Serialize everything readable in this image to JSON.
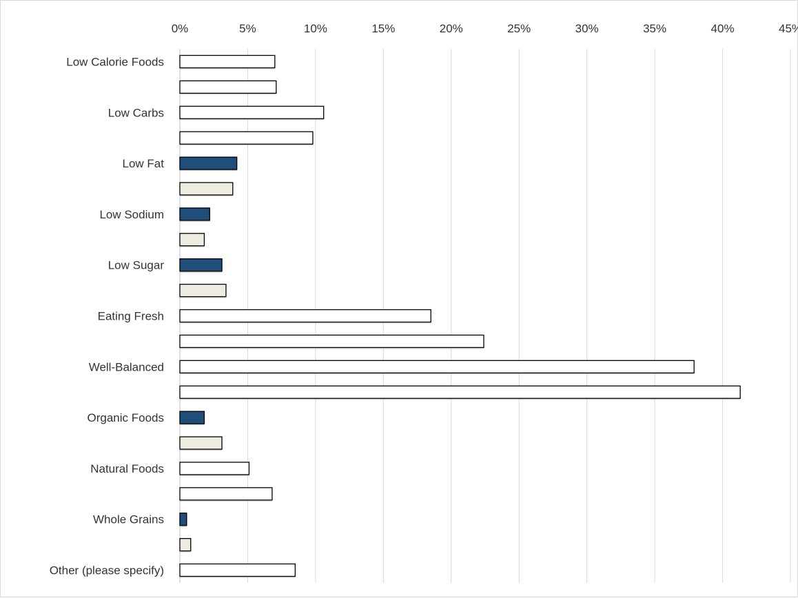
{
  "chart_data": {
    "type": "bar",
    "orientation": "horizontal",
    "title": "",
    "xlabel": "",
    "ylabel": "",
    "xlim": [
      0,
      45
    ],
    "x_tick_labels": [
      "0%",
      "5%",
      "10%",
      "15%",
      "20%",
      "25%",
      "30%",
      "35%",
      "40%",
      "45%"
    ],
    "grid": "vertical",
    "legend": "none",
    "axis_position": "top",
    "bars": [
      {
        "category": "Low Calorie Foods",
        "value": 7.0,
        "style": "white"
      },
      {
        "category": "",
        "value": 7.1,
        "style": "white"
      },
      {
        "category": "Low Carbs",
        "value": 10.6,
        "style": "white"
      },
      {
        "category": "",
        "value": 9.8,
        "style": "white"
      },
      {
        "category": "Low Fat",
        "value": 4.2,
        "style": "blue"
      },
      {
        "category": "",
        "value": 3.9,
        "style": "beige"
      },
      {
        "category": "Low Sodium",
        "value": 2.2,
        "style": "blue"
      },
      {
        "category": "",
        "value": 1.8,
        "style": "beige"
      },
      {
        "category": "Low Sugar",
        "value": 3.1,
        "style": "blue"
      },
      {
        "category": "",
        "value": 3.4,
        "style": "beige"
      },
      {
        "category": "Eating Fresh",
        "value": 18.5,
        "style": "white"
      },
      {
        "category": "",
        "value": 22.4,
        "style": "white"
      },
      {
        "category": "Well-Balanced",
        "value": 37.9,
        "style": "white"
      },
      {
        "category": "",
        "value": 41.3,
        "style": "white"
      },
      {
        "category": "Organic Foods",
        "value": 1.8,
        "style": "blue"
      },
      {
        "category": "",
        "value": 3.1,
        "style": "beige"
      },
      {
        "category": "Natural Foods",
        "value": 5.1,
        "style": "white"
      },
      {
        "category": "",
        "value": 6.8,
        "style": "white"
      },
      {
        "category": "Whole Grains",
        "value": 0.5,
        "style": "blue"
      },
      {
        "category": "",
        "value": 0.8,
        "style": "beige"
      },
      {
        "category": "Other (please specify)",
        "value": 8.5,
        "style": "white"
      }
    ],
    "colors": {
      "white": "#ffffff",
      "blue": "#1f4e79",
      "beige": "#eeece1",
      "outline": "#000000",
      "grid": "#d9d9d9"
    }
  }
}
